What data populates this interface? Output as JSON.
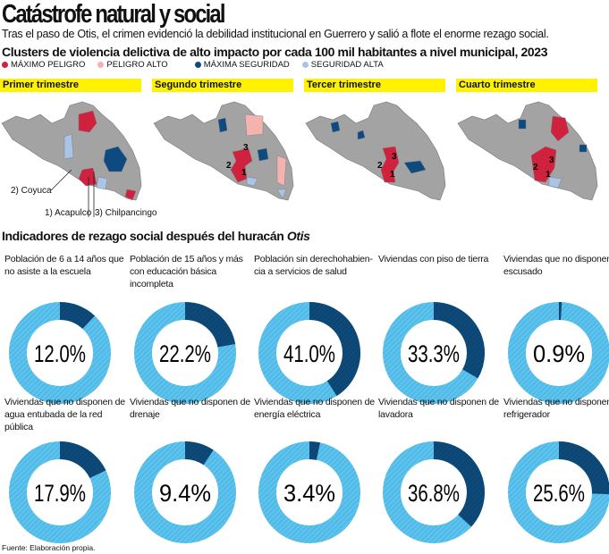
{
  "header": {
    "title": "Catástrofe natural y social",
    "subtitle": "Tras el paso de Otis, el crimen evidenció la debilidad institucional en Guerrero y salió a flote el enorme rezago social."
  },
  "maps": {
    "heading": "Clusters de violencia delictiva de alto impacto por cada 100 mil habitantes a nivel municipal, 2023",
    "legend": [
      {
        "label": "MÁXIMO PELIGRO",
        "color": "#d0223f"
      },
      {
        "label": "PELIGRO ALTO",
        "color": "#f4b3ae"
      },
      {
        "label": "MÁXIMA SEGURIDAD",
        "color": "#0d4a80"
      },
      {
        "label": "SEGURIDAD ALTA",
        "color": "#a9c4e6"
      }
    ],
    "base_color": "#a3a3a3",
    "quarters": [
      "Primer trimestre",
      "Segundo trimestre",
      "Tercer trimestre",
      "Cuarto trimestre"
    ],
    "annotations": {
      "coyuca": "2) Coyuca",
      "acapulco": "1) Acapulco",
      "chilpancingo": "3) Chilpancingo",
      "n1": "1",
      "n2": "2",
      "n3": "3"
    }
  },
  "indicators": {
    "heading_prefix": "Indicadores de rezago social después del huracán ",
    "heading_italic": "Otis"
  },
  "chart_data": {
    "type": "pie",
    "subtype": "donut",
    "unit": "%",
    "colors": {
      "value": "#0d4a7a",
      "rest": "#5bc3ee"
    },
    "items": [
      {
        "label": "Población de 6 a 14 años que no asiste a la escuela",
        "value": 12.0,
        "text": "12.0%"
      },
      {
        "label": "Población de 15 años y más con educación básica incompleta",
        "value": 22.2,
        "text": "22.2%"
      },
      {
        "label": "Población sin derechohabien­cia a servicios de salud",
        "value": 41.0,
        "text": "41.0%"
      },
      {
        "label": "Viviendas con piso de tierra",
        "value": 33.3,
        "text": "33.3%"
      },
      {
        "label": "Viviendas que no disponen de escusado",
        "value": 0.9,
        "text": "0.9%"
      },
      {
        "label": "Viviendas que no disponen de agua entubada de la red pública",
        "value": 17.9,
        "text": "17.9%"
      },
      {
        "label": "Viviendas que no disponen de drenaje",
        "value": 9.4,
        "text": "9.4%"
      },
      {
        "label": "Viviendas que no disponen de energía eléctrica",
        "value": 3.4,
        "text": "3.4%"
      },
      {
        "label": "Viviendas que no disponen de lavadora",
        "value": 36.8,
        "text": "36.8%"
      },
      {
        "label": "Viviendas que no disponen de refrigerador",
        "value": 25.6,
        "text": "25.6%"
      }
    ]
  },
  "footer": {
    "source": "Fuente: Elaboración propia."
  }
}
